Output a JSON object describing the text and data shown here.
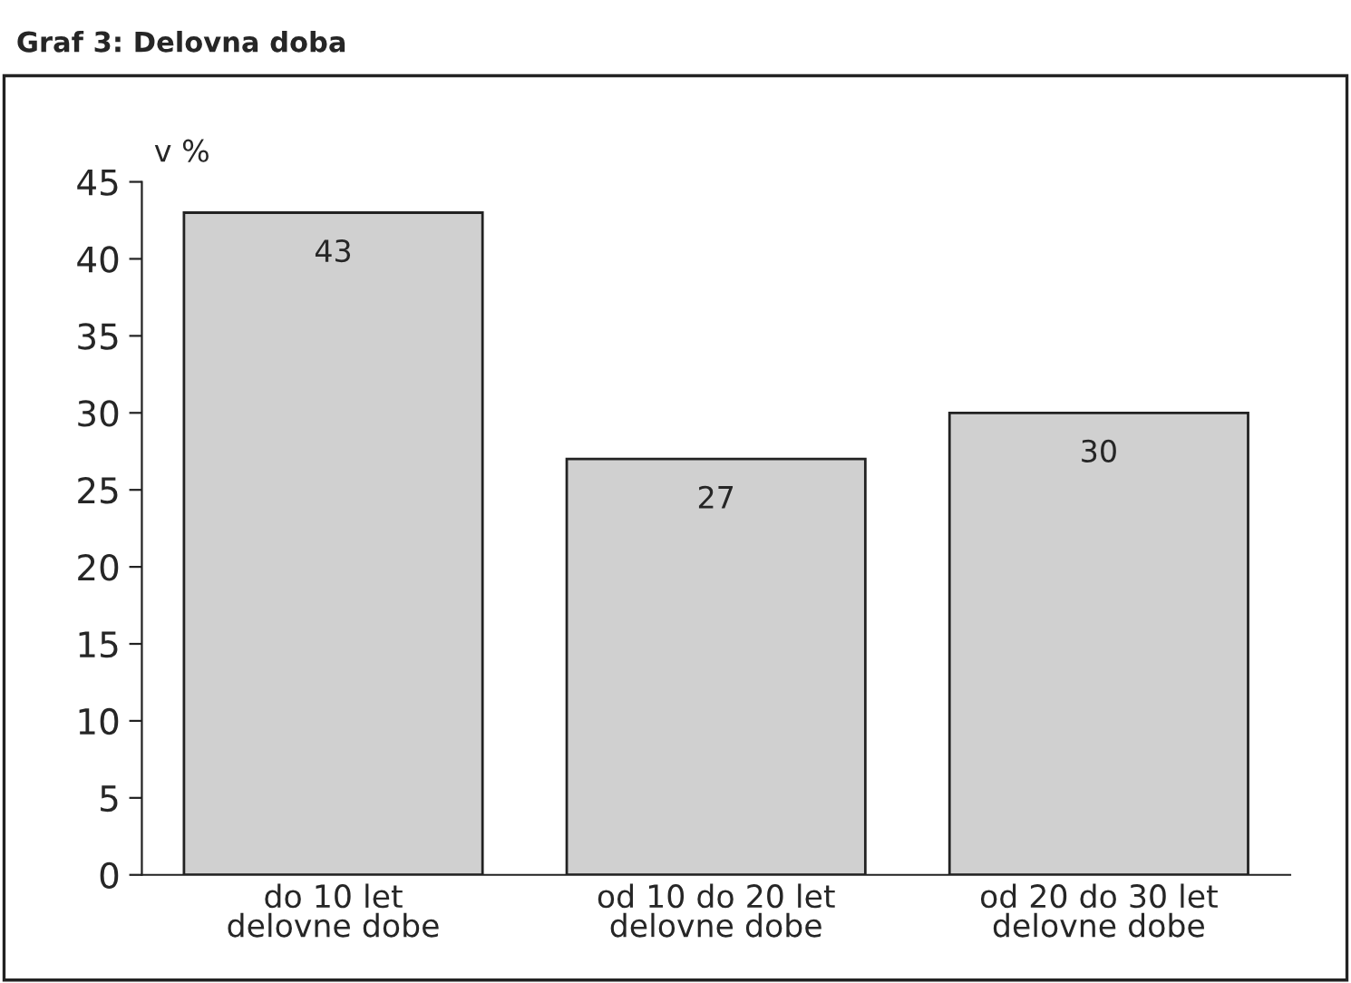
{
  "chart_data": {
    "type": "bar",
    "title": "Graf 3: Delovna doba",
    "ylabel": "v %",
    "categories": [
      "do 10 let\ndelovne dobe",
      "od 10 do 20 let\ndelovne dobe",
      "od 20 do 30 let\ndelovne dobe"
    ],
    "values": [
      43,
      27,
      30
    ],
    "color": "#d0d0d0",
    "ylim": [
      0,
      45
    ],
    "yticks": [
      0,
      5,
      10,
      15,
      20,
      25,
      30,
      35,
      40,
      45
    ],
    "grid": false,
    "data_labels": true
  }
}
